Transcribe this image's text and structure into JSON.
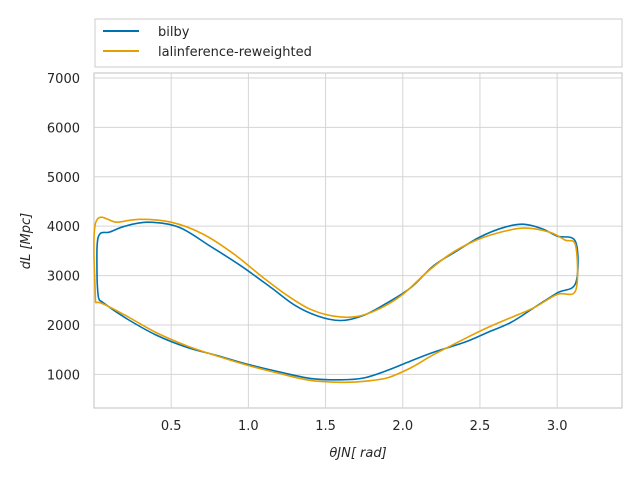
{
  "chart_data": {
    "type": "line",
    "xlabel": "θJN[ rad]",
    "ylabel": "dL [Mpc]",
    "xlim": [
      0.0,
      3.42
    ],
    "ylim": [
      320,
      7100
    ],
    "xticks": [
      0.5,
      1.0,
      1.5,
      2.0,
      2.5,
      3.0
    ],
    "yticks": [
      1000,
      2000,
      3000,
      4000,
      5000,
      6000,
      7000
    ],
    "xtick_labels": [
      "0.5",
      "1.0",
      "1.5",
      "2.0",
      "2.5",
      "3.0"
    ],
    "ytick_labels": [
      "1000",
      "2000",
      "3000",
      "4000",
      "5000",
      "6000",
      "7000"
    ],
    "grid": true,
    "legend_position": "top, above plot",
    "series": [
      {
        "name": "bilby",
        "color": "#0072b2",
        "points": [
          [
            0.02,
            2900
          ],
          [
            0.02,
            3600
          ],
          [
            0.04,
            3850
          ],
          [
            0.1,
            3880
          ],
          [
            0.2,
            4000
          ],
          [
            0.35,
            4080
          ],
          [
            0.55,
            3980
          ],
          [
            0.75,
            3600
          ],
          [
            0.95,
            3200
          ],
          [
            1.15,
            2750
          ],
          [
            1.3,
            2400
          ],
          [
            1.45,
            2180
          ],
          [
            1.6,
            2090
          ],
          [
            1.75,
            2200
          ],
          [
            1.9,
            2450
          ],
          [
            2.05,
            2750
          ],
          [
            2.2,
            3200
          ],
          [
            2.35,
            3500
          ],
          [
            2.5,
            3780
          ],
          [
            2.65,
            3970
          ],
          [
            2.78,
            4040
          ],
          [
            2.9,
            3950
          ],
          [
            3.0,
            3800
          ],
          [
            3.12,
            3680
          ],
          [
            3.12,
            2850
          ],
          [
            3.0,
            2650
          ],
          [
            2.85,
            2350
          ],
          [
            2.7,
            2050
          ],
          [
            2.55,
            1850
          ],
          [
            2.4,
            1650
          ],
          [
            2.2,
            1450
          ],
          [
            2.05,
            1270
          ],
          [
            1.9,
            1080
          ],
          [
            1.75,
            930
          ],
          [
            1.6,
            890
          ],
          [
            1.4,
            920
          ],
          [
            1.2,
            1050
          ],
          [
            1.0,
            1200
          ],
          [
            0.8,
            1380
          ],
          [
            0.6,
            1550
          ],
          [
            0.4,
            1800
          ],
          [
            0.2,
            2150
          ],
          [
            0.06,
            2450
          ],
          [
            0.03,
            2550
          ],
          [
            0.02,
            2900
          ]
        ]
      },
      {
        "name": "lalinference-reweighted",
        "color": "#e69f00",
        "points": [
          [
            0.01,
            2450
          ],
          [
            0.01,
            4060
          ],
          [
            0.15,
            4080
          ],
          [
            0.3,
            4140
          ],
          [
            0.5,
            4080
          ],
          [
            0.7,
            3850
          ],
          [
            0.9,
            3450
          ],
          [
            1.1,
            2950
          ],
          [
            1.25,
            2600
          ],
          [
            1.4,
            2320
          ],
          [
            1.55,
            2180
          ],
          [
            1.7,
            2170
          ],
          [
            1.85,
            2330
          ],
          [
            2.0,
            2620
          ],
          [
            2.15,
            3050
          ],
          [
            2.3,
            3420
          ],
          [
            2.45,
            3680
          ],
          [
            2.6,
            3850
          ],
          [
            2.78,
            3960
          ],
          [
            2.95,
            3880
          ],
          [
            3.05,
            3720
          ],
          [
            3.12,
            3600
          ],
          [
            3.12,
            2700
          ],
          [
            3.0,
            2620
          ],
          [
            2.85,
            2350
          ],
          [
            2.7,
            2150
          ],
          [
            2.55,
            1950
          ],
          [
            2.4,
            1720
          ],
          [
            2.2,
            1400
          ],
          [
            2.05,
            1130
          ],
          [
            1.9,
            930
          ],
          [
            1.75,
            860
          ],
          [
            1.6,
            840
          ],
          [
            1.4,
            880
          ],
          [
            1.2,
            1020
          ],
          [
            1.0,
            1180
          ],
          [
            0.8,
            1370
          ],
          [
            0.6,
            1580
          ],
          [
            0.4,
            1850
          ],
          [
            0.2,
            2200
          ],
          [
            0.05,
            2440
          ],
          [
            0.01,
            2450
          ]
        ]
      }
    ]
  }
}
